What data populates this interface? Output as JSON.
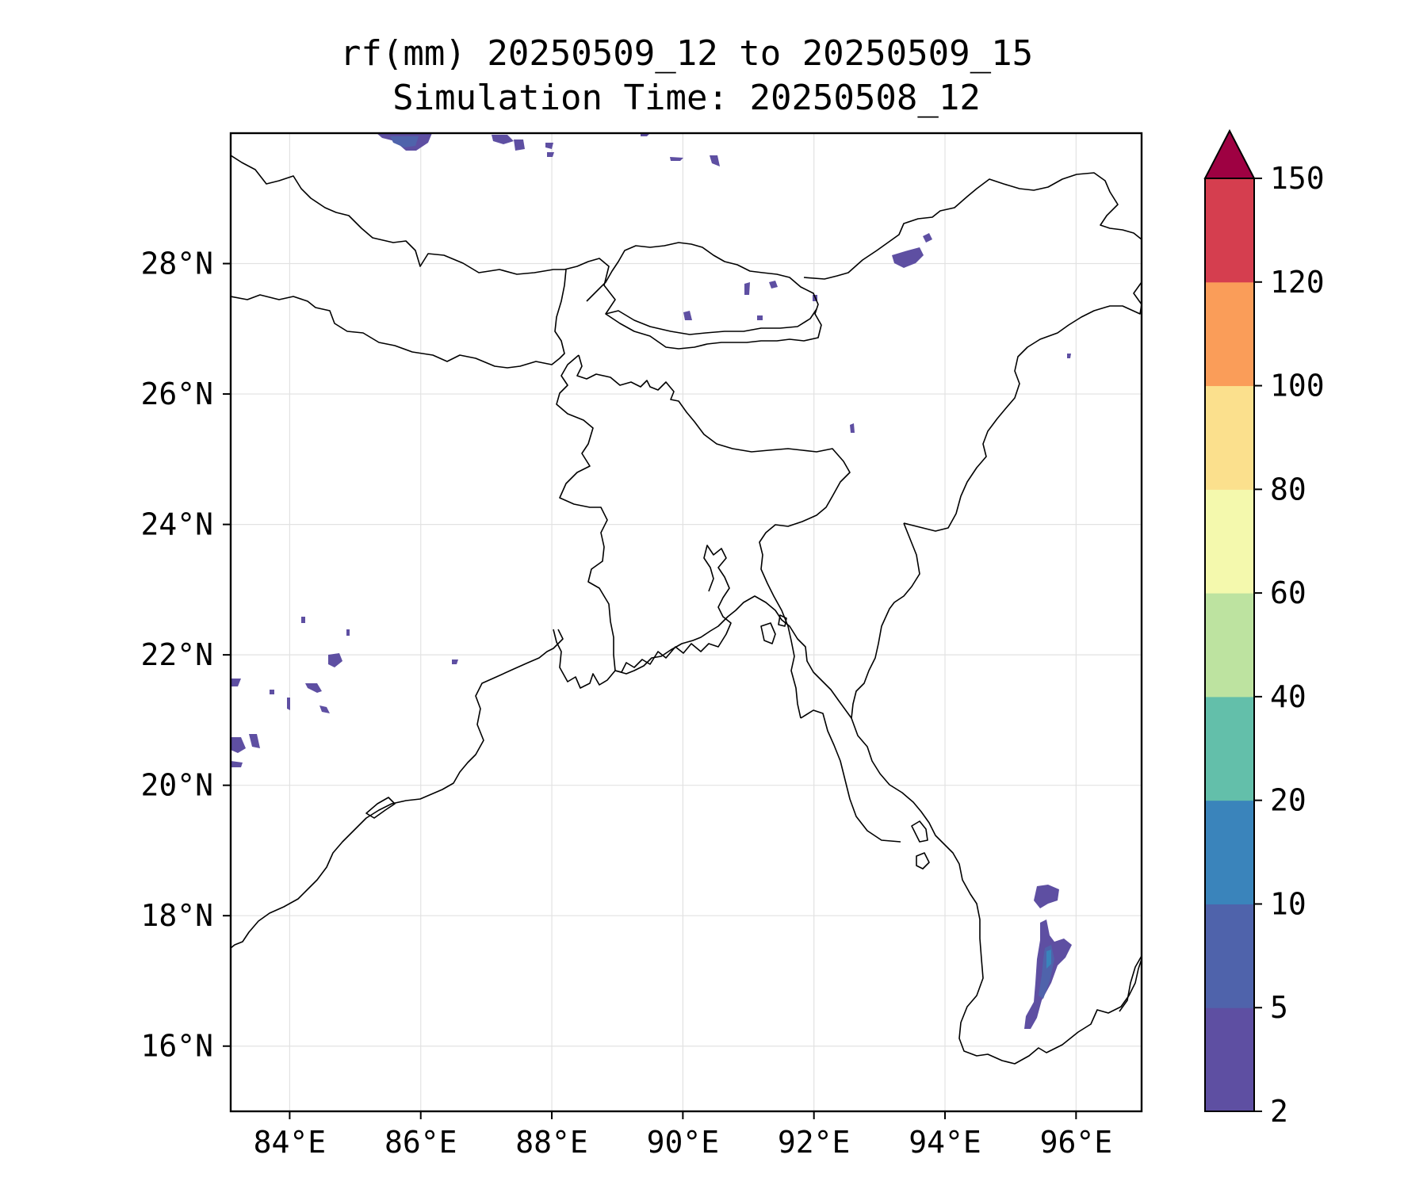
{
  "title": {
    "line1": "rf(mm) 20250509_12 to 20250509_15",
    "line2": "Simulation Time: 20250508_12"
  },
  "map": {
    "lon_range": [
      83.1,
      97.0
    ],
    "lat_range": [
      15.0,
      30.0
    ],
    "lon_ticks": [
      84,
      86,
      88,
      90,
      92,
      94,
      96
    ],
    "lat_ticks": [
      16,
      18,
      20,
      22,
      24,
      26,
      28
    ],
    "lon_tick_labels": [
      "84°E",
      "86°E",
      "88°E",
      "90°E",
      "92°E",
      "94°E",
      "96°E"
    ],
    "lat_tick_labels": [
      "16°N",
      "18°N",
      "20°N",
      "22°N",
      "24°N",
      "26°N",
      "28°N"
    ],
    "grid": true,
    "colorbar": {
      "boundaries": [
        2,
        5,
        10,
        20,
        40,
        60,
        80,
        100,
        120,
        150
      ],
      "tick_labels": [
        "2",
        "5",
        "10",
        "20",
        "40",
        "60",
        "80",
        "100",
        "120",
        "150"
      ],
      "colors": [
        "#5e4fa2",
        "#4f63ab",
        "#3a84bb",
        "#63bfaa",
        "#bde3a0",
        "#f4f9ad",
        "#fbe08d",
        "#fa9d59",
        "#d53e4f"
      ],
      "extend_color": "#9e0142",
      "extend": "max"
    }
  }
}
